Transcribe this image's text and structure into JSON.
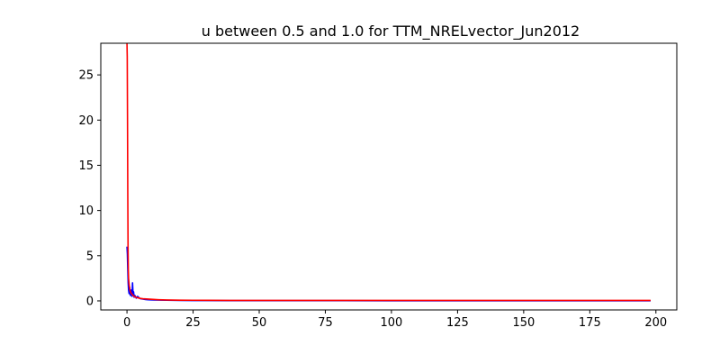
{
  "chart_data": {
    "type": "line",
    "title": "u between 0.5 and 1.0  for TTM_NRELvector_Jun2012",
    "xlabel": "",
    "ylabel": "",
    "xlim": [
      -9.9,
      207.9
    ],
    "ylim": [
      -1.0,
      28.5
    ],
    "xticks": [
      0,
      25,
      50,
      75,
      100,
      125,
      150,
      175,
      200
    ],
    "yticks": [
      0,
      5,
      10,
      15,
      20,
      25
    ],
    "xtick_labels": [
      "0",
      "25",
      "50",
      "75",
      "100",
      "125",
      "150",
      "175",
      "200"
    ],
    "ytick_labels": [
      "0",
      "5",
      "10",
      "15",
      "20",
      "25"
    ],
    "grid": false,
    "legend": "none",
    "series": [
      {
        "color": "#0000ff",
        "x": [
          0,
          0.15,
          0.3,
          0.45,
          0.6,
          0.8,
          1.0,
          1.3,
          1.6,
          1.9,
          2.1,
          2.3,
          2.5,
          2.7,
          3.0,
          3.5,
          4.0,
          5.0,
          6.0,
          7.0,
          8.0,
          10,
          12,
          15,
          20,
          25,
          30,
          40,
          50,
          75,
          100,
          125,
          150,
          175,
          198
        ],
        "y": [
          6.0,
          5.2,
          3.5,
          2.0,
          1.2,
          0.8,
          1.5,
          0.6,
          1.2,
          0.5,
          2.0,
          0.8,
          1.0,
          0.4,
          0.6,
          0.3,
          0.5,
          0.25,
          0.2,
          0.15,
          0.12,
          0.1,
          0.09,
          0.07,
          0.05,
          0.04,
          0.04,
          0.03,
          0.03,
          0.03,
          0.02,
          0.02,
          0.02,
          0.02,
          0.02
        ]
      },
      {
        "color": "#ff0000",
        "x": [
          0,
          0.1,
          0.2,
          0.3,
          0.4,
          0.5,
          0.6,
          0.8,
          1.0,
          1.2,
          1.5,
          2.0,
          2.5,
          3.0,
          4.0,
          5.0,
          6.0,
          8.0,
          10,
          12,
          15,
          20,
          25,
          30,
          40,
          50,
          75,
          100,
          125,
          150,
          175,
          198
        ],
        "y": [
          28.5,
          27.0,
          20.0,
          12.0,
          6.0,
          3.5,
          2.5,
          1.8,
          1.4,
          1.1,
          0.9,
          0.7,
          0.55,
          0.45,
          0.35,
          0.28,
          0.24,
          0.2,
          0.16,
          0.13,
          0.1,
          0.08,
          0.07,
          0.06,
          0.05,
          0.05,
          0.05,
          0.05,
          0.05,
          0.05,
          0.05,
          0.05
        ]
      }
    ]
  }
}
